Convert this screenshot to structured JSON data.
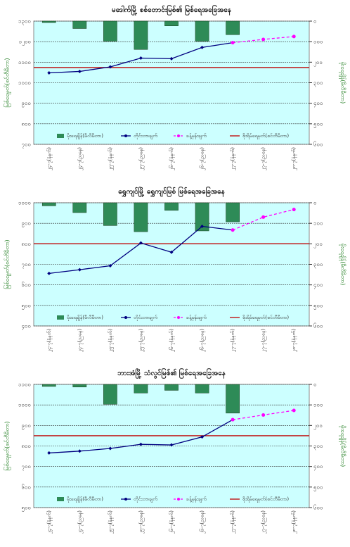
{
  "chart_data": [
    {
      "type": "combo",
      "title": "မဒေါက်မြို့ စစ်တောင်းမြစ်၏ မြစ်ရေအခြေအနေ",
      "y_label": "မြစ်ရေမှတ်(စင်တီမီတာ)",
      "y2_label": "မိုးရေချိန်(မီလီမီတာ)",
      "categories": [
        "၂၄-၇(နံနက်)",
        "၂၄-၇(ညနေ)",
        "၂၅-၇(နံနက်)",
        "၂၅-၇(ညနေ)",
        "၂၆-၇(နံနက်)",
        "၂၆-၇(ညနေ)",
        "၂၇-၇(နံနက်)",
        "၂၇-၇(ညနေ)",
        "၂၈-၇(နံနက်)"
      ],
      "ylim": [
        700,
        1300
      ],
      "yticks": [
        {
          "value": 700,
          "label": "၇၀၀"
        },
        {
          "value": 800,
          "label": "၈၀၀"
        },
        {
          "value": 900,
          "label": "၉၀၀"
        },
        {
          "value": 1000,
          "label": "၁၀၀၀"
        },
        {
          "value": 1100,
          "label": "၁၁၀၀"
        },
        {
          "value": 1200,
          "label": "၁၂၀၀"
        },
        {
          "value": 1300,
          "label": "၁၃၀၀"
        }
      ],
      "y2lim": [
        0,
        600
      ],
      "y2ticks": [
        {
          "value": 0,
          "label": "၀"
        },
        {
          "value": 100,
          "label": "၁၀၀"
        },
        {
          "value": 200,
          "label": "၂၀၀"
        },
        {
          "value": 300,
          "label": "၃၀၀"
        },
        {
          "value": 400,
          "label": "၄၀၀"
        },
        {
          "value": 500,
          "label": "၅၀၀"
        },
        {
          "value": 600,
          "label": "၆၀၀"
        }
      ],
      "series": [
        {
          "name": "မိုးရေချိန်(မီလီမီတာ)",
          "kind": "bar",
          "axis": "y2",
          "color": "#2e8b57",
          "values": [
            7,
            36,
            98,
            138,
            23,
            98,
            66,
            null,
            null
          ]
        },
        {
          "name": "တိုင်းတာချက်",
          "kind": "line",
          "color": "#000080",
          "values": [
            1048,
            1055,
            1077,
            1120,
            1117,
            1172,
            1195,
            null,
            null
          ]
        },
        {
          "name": "ခန့်မှန်းချက်",
          "kind": "dashed",
          "color": "#ff00ff",
          "values": [
            null,
            null,
            null,
            null,
            null,
            null,
            1195,
            1211,
            1225
          ]
        }
      ],
      "reference_line": {
        "name": "စိုးရိမ်ရေမှတ်(စင်တီမီတာ)",
        "color": "#c00000",
        "value": 1074
      }
    },
    {
      "type": "combo",
      "title": "ရွှေကျင်မြို့ ရွှေကျင်မြစ် မြစ်ရေအခြေအနေ",
      "y_label": "မြစ်ရေမှတ်(စင်တီမီတာ)",
      "y2_label": "မိုးရေချိန်(မီလီမီတာ)",
      "categories": [
        "၂၄-၇(နံနက်)",
        "၂၄-၇(ညနေ)",
        "၂၅-၇(နံနက်)",
        "၂၅-၇(ညနေ)",
        "၂၆-၇(နံနက်)",
        "၂၆-၇(ညနေ)",
        "၂၇-၇(နံနက်)",
        "၂၇-၇(ညနေ)",
        "၂၈-၇(နံနက်)"
      ],
      "ylim": [
        400,
        1000
      ],
      "yticks": [
        {
          "value": 400,
          "label": "၄၀၀"
        },
        {
          "value": 500,
          "label": "၅၀၀"
        },
        {
          "value": 600,
          "label": "၆၀၀"
        },
        {
          "value": 700,
          "label": "၇၀၀"
        },
        {
          "value": 800,
          "label": "၈၀၀"
        },
        {
          "value": 900,
          "label": "၉၀၀"
        },
        {
          "value": 1000,
          "label": "၁၀၀၀"
        }
      ],
      "y2lim": [
        0,
        600
      ],
      "y2ticks": [
        {
          "value": 0,
          "label": "၀"
        },
        {
          "value": 100,
          "label": "၁၀၀"
        },
        {
          "value": 200,
          "label": "၂၀၀"
        },
        {
          "value": 300,
          "label": "၃၀၀"
        },
        {
          "value": 400,
          "label": "၄၀၀"
        },
        {
          "value": 500,
          "label": "၅၀၀"
        },
        {
          "value": 600,
          "label": "၆၀၀"
        }
      ],
      "series": [
        {
          "name": "မိုးရေချိန်(မီလီမီတာ)",
          "kind": "bar",
          "axis": "y2",
          "color": "#2e8b57",
          "values": [
            15,
            48,
            111,
            141,
            37,
            137,
            93,
            null,
            null
          ]
        },
        {
          "name": "တိုင်းတာချက်",
          "kind": "line",
          "color": "#000080",
          "values": [
            656,
            674,
            693,
            804,
            759,
            885,
            867,
            null,
            null
          ]
        },
        {
          "name": "ခန့်မှန်းချက်",
          "kind": "dashed",
          "color": "#ff00ff",
          "values": [
            null,
            null,
            null,
            null,
            null,
            null,
            867,
            930,
            967
          ]
        }
      ],
      "reference_line": {
        "name": "စိုးရိမ်ရေမှတ်(စင်တီမီတာ)",
        "color": "#c00000",
        "value": 800
      }
    },
    {
      "type": "combo",
      "title": "ဘားအံမြို့ သံလွင်မြစ်၏ မြစ်ရေအခြေအနေ",
      "y_label": "မြစ်ရေမှတ်(စင်တီမီတာ)",
      "y2_label": "မိုးရေချိန်(မီလီမီတာ)",
      "categories": [
        "၂၄-၇(နံနက်)",
        "၂၄-၇(ညနေ)",
        "၂၅-၇(နံနက်)",
        "၂၅-၇(ညနေ)",
        "၂၆-၇(နံနက်)",
        "၂၆-၇(ညနေ)",
        "၂၇-၇(နံနက်)",
        "၂၇-၇(ညနေ)",
        "၂၈-၇(နံနက်)"
      ],
      "ylim": [
        500,
        1100
      ],
      "yticks": [
        {
          "value": 500,
          "label": "၅၀၀"
        },
        {
          "value": 600,
          "label": "၆၀၀"
        },
        {
          "value": 700,
          "label": "၇၀၀"
        },
        {
          "value": 800,
          "label": "၈၀၀"
        },
        {
          "value": 900,
          "label": "၉၀၀"
        },
        {
          "value": 1000,
          "label": "၁၀၀၀"
        },
        {
          "value": 1100,
          "label": "၁၁၀၀"
        }
      ],
      "y2lim": [
        0,
        600
      ],
      "y2ticks": [
        {
          "value": 0,
          "label": "၀"
        },
        {
          "value": 100,
          "label": "၁၀၀"
        },
        {
          "value": 200,
          "label": "၂၀၀"
        },
        {
          "value": 300,
          "label": "၃၀၀"
        },
        {
          "value": 400,
          "label": "၄၀၀"
        },
        {
          "value": 500,
          "label": "၅၀၀"
        },
        {
          "value": 600,
          "label": "၆၀၀"
        }
      ],
      "series": [
        {
          "name": "မိုးရေချိန်(မီလီမီတာ)",
          "kind": "bar",
          "axis": "y2",
          "color": "#2e8b57",
          "values": [
            10,
            13,
            97,
            42,
            29,
            42,
            140,
            null,
            null
          ]
        },
        {
          "name": "တိုင်းတာချက်",
          "kind": "line",
          "color": "#000080",
          "values": [
            766,
            775,
            788,
            808,
            805,
            844,
            928,
            null,
            null
          ]
        },
        {
          "name": "ခန့်မှန်းချက်",
          "kind": "dashed",
          "color": "#ff00ff",
          "values": [
            null,
            null,
            null,
            null,
            null,
            null,
            928,
            951,
            973
          ]
        }
      ],
      "reference_line": {
        "name": "စိုးရိမ်ရေမှတ်(စင်တီမီတာ)",
        "color": "#c00000",
        "value": 850
      }
    }
  ]
}
